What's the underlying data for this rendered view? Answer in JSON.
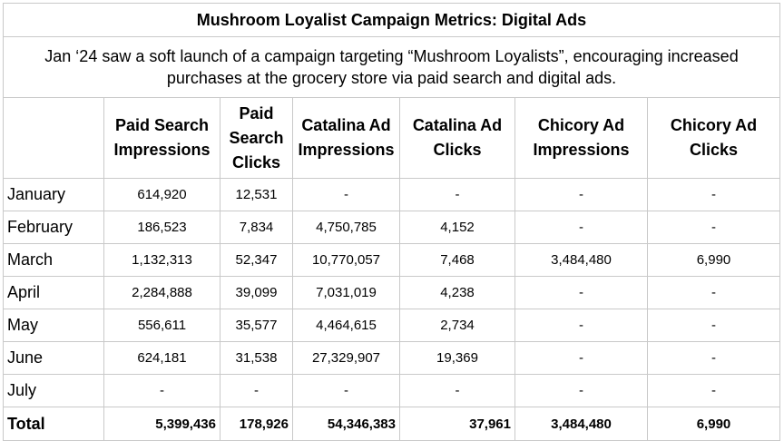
{
  "title": "Mushroom Loyalist Campaign Metrics: Digital Ads",
  "subtitle": "Jan ‘24 saw a soft launch of a campaign targeting “Mushroom Loyalists”, encouraging increased purchases at the grocery store via paid search and digital ads.",
  "columns": [
    "",
    "Paid Search Impressions",
    "Paid Search Clicks",
    "Catalina Ad Impressions",
    "Catalina Ad Clicks",
    "Chicory Ad Impressions",
    "Chicory Ad Clicks"
  ],
  "rows": [
    {
      "month": "January",
      "cells": [
        "614,920",
        "12,531",
        "-",
        "-",
        "-",
        "-"
      ]
    },
    {
      "month": "February",
      "cells": [
        "186,523",
        "7,834",
        "4,750,785",
        "4,152",
        "-",
        "-"
      ]
    },
    {
      "month": "March",
      "cells": [
        "1,132,313",
        "52,347",
        "10,770,057",
        "7,468",
        "3,484,480",
        "6,990"
      ]
    },
    {
      "month": "April",
      "cells": [
        "2,284,888",
        "39,099",
        "7,031,019",
        "4,238",
        "-",
        "-"
      ]
    },
    {
      "month": "May",
      "cells": [
        "556,611",
        "35,577",
        "4,464,615",
        "2,734",
        "-",
        "-"
      ]
    },
    {
      "month": "June",
      "cells": [
        "624,181",
        "31,538",
        "27,329,907",
        "19,369",
        "-",
        "-"
      ]
    },
    {
      "month": "July",
      "cells": [
        "-",
        "-",
        "-",
        "-",
        "-",
        "-"
      ]
    }
  ],
  "total": {
    "label": "Total",
    "cells": [
      "5,399,436",
      "178,926",
      "54,346,383",
      "37,961",
      "3,484,480",
      "6,990"
    ]
  }
}
